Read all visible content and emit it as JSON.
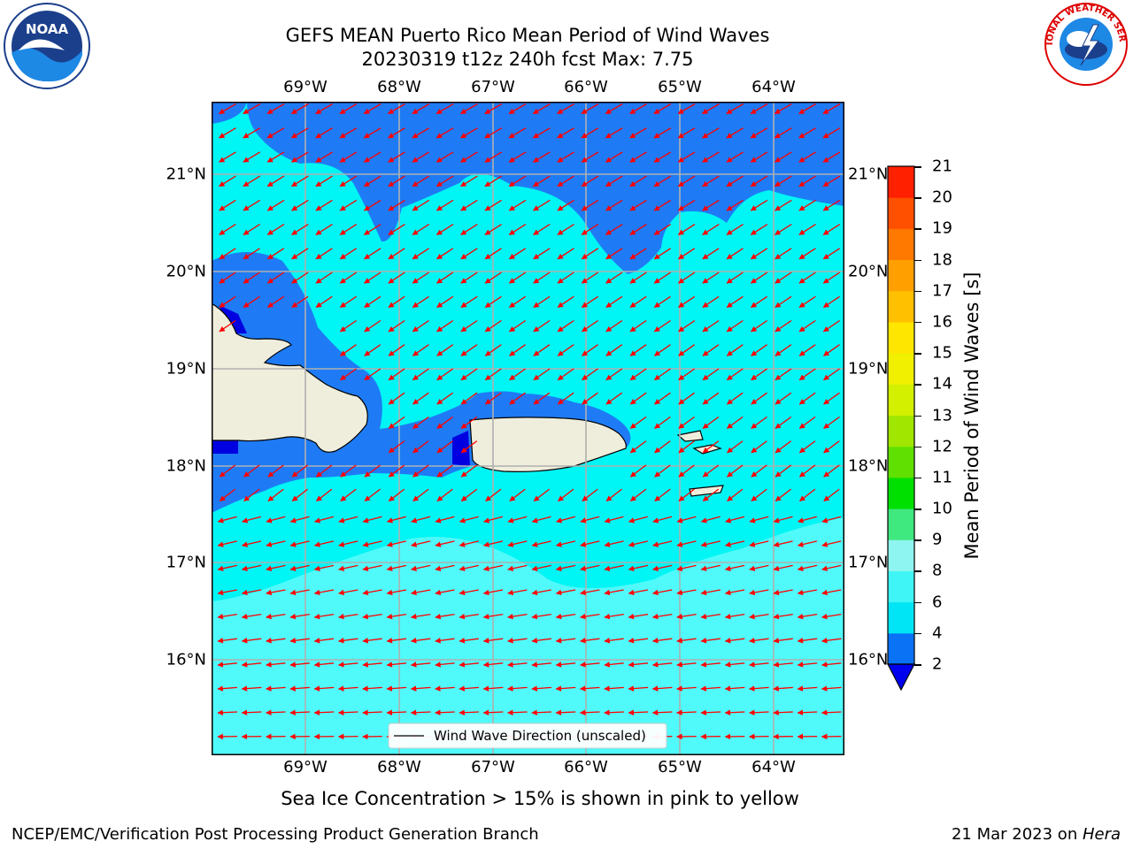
{
  "title_line1": "GEFS MEAN Puerto Rico Mean Period of Wind Waves",
  "title_line2": "20230319 t12z 240h fcst   Max: 7.75",
  "lon_ticks": [
    "69°W",
    "68°W",
    "67°W",
    "66°W",
    "65°W",
    "64°W"
  ],
  "lat_ticks": [
    "21°N",
    "20°N",
    "19°N",
    "18°N",
    "17°N",
    "16°N"
  ],
  "legend_label": "Wind Wave Direction (unscaled)",
  "colorbar": {
    "label": "Mean Period of Wind Waves [s]",
    "ticks": [
      "2",
      "4",
      "6",
      "8",
      "9",
      "10",
      "11",
      "12",
      "13",
      "14",
      "15",
      "16",
      "17",
      "18",
      "19",
      "20",
      "21"
    ],
    "colors": [
      "#0a72f5",
      "#00e5f5",
      "#40f5f5",
      "#8ff5f0",
      "#40e880",
      "#00e000",
      "#60e000",
      "#a0e600",
      "#d2f000",
      "#f0f000",
      "#ffe600",
      "#ffc000",
      "#ffa000",
      "#ff7800",
      "#ff5000",
      "#ff2000"
    ],
    "under_color": "#0000ee"
  },
  "field_colors": {
    "band_2_4": "#1e7bf5",
    "band_4_6": "#00f5f5",
    "band_6_8": "#50fafa",
    "band_under_2": "#0000e0",
    "land": "#efeedd",
    "arrow": "#ff0000"
  },
  "subtitle": "Sea Ice Concentration > 15% is shown in pink to yellow",
  "footer_left": "NCEP/EMC/Verification Post Processing Product Generation Branch",
  "footer_right_prefix": "21 Mar 2023 on ",
  "footer_right_host": "Hera",
  "logos": {
    "left": "NOAA",
    "right": "NATIONAL WEATHER SERVICE"
  }
}
